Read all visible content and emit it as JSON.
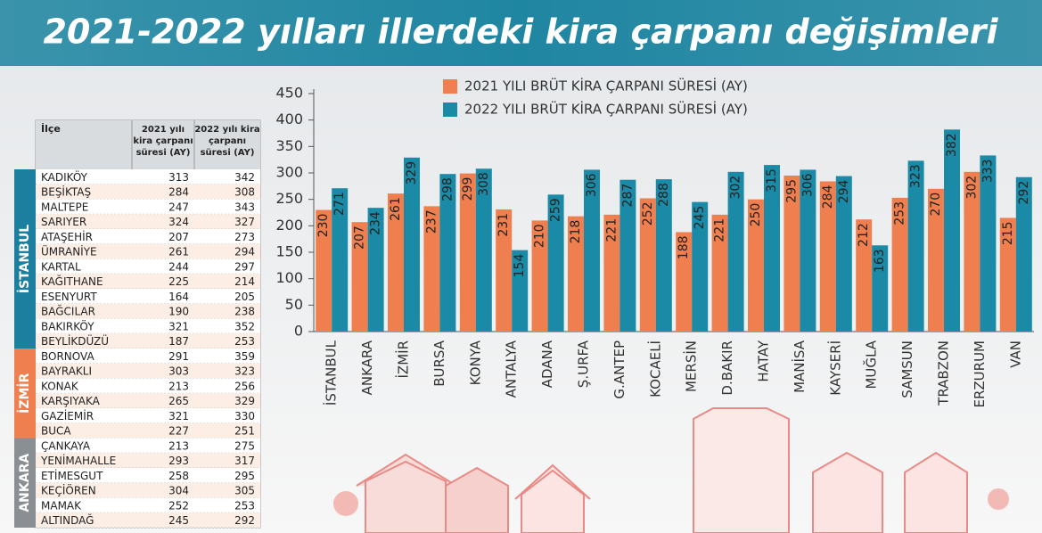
{
  "chart_data": {
    "type": "bar",
    "title": "2021-2022 yılları illerdeki kira çarpanı değişimleri",
    "categories": [
      "İSTANBUL",
      "ANKARA",
      "İZMİR",
      "BURSA",
      "KONYA",
      "ANTALYA",
      "ADANA",
      "Ş.URFA",
      "G.ANTEP",
      "KOCAELİ",
      "MERSİN",
      "D.BAKIR",
      "HATAY",
      "MANİSA",
      "KAYSERİ",
      "MUĞLA",
      "SAMSUN",
      "TRABZON",
      "ERZURUM",
      "VAN"
    ],
    "series": [
      {
        "name": "2021 YILI BRÜT KİRA  ÇARPANI SÜRESİ (AY)",
        "color": "#f07f4f",
        "values": [
          230,
          207,
          261,
          237,
          299,
          231,
          210,
          218,
          221,
          252,
          188,
          221,
          250,
          295,
          284,
          212,
          253,
          270,
          302,
          215
        ]
      },
      {
        "name": "2022 YILI BRÜT KİRA ÇARPANI SÜRESİ (AY)",
        "color": "#1b8aa6",
        "values": [
          271,
          234,
          329,
          298,
          308,
          154,
          259,
          306,
          287,
          288,
          245,
          302,
          315,
          306,
          294,
          163,
          323,
          382,
          333,
          292
        ]
      }
    ],
    "ylim": [
      0,
      450
    ],
    "yticks": [
      0,
      50,
      100,
      150,
      200,
      250,
      300,
      350,
      400,
      450
    ],
    "grid": false
  },
  "table": {
    "header": [
      "İlçe",
      "2021 yılı kira çarpanı süresi (AY)",
      "2022 yılı kira çarpanı süresi (AY)"
    ],
    "groups": [
      {
        "name": "İSTANBUL",
        "color": "#1c7fa0",
        "rows": [
          [
            "KADIKÖY",
            "313",
            "342"
          ],
          [
            "BEŞİKTAŞ",
            "284",
            "308"
          ],
          [
            "MALTEPE",
            "247",
            "343"
          ],
          [
            "SARIYER",
            "324",
            "327"
          ],
          [
            "ATAŞEHİR",
            "207",
            "273"
          ],
          [
            "ÜMRANİYE",
            "261",
            "294"
          ],
          [
            "KARTAL",
            "244",
            "297"
          ],
          [
            "KAĞITHANE",
            "225",
            "214"
          ],
          [
            "ESENYURT",
            "164",
            "205"
          ],
          [
            "BAĞCILAR",
            "190",
            "238"
          ],
          [
            "BAKIRKÖY",
            "321",
            "352"
          ],
          [
            "BEYLİKDÜZÜ",
            "187",
            "253"
          ]
        ]
      },
      {
        "name": "İZMİR",
        "color": "#f07f4f",
        "rows": [
          [
            "BORNOVA",
            "291",
            "359"
          ],
          [
            "BAYRAKLI",
            "303",
            "323"
          ],
          [
            "KONAK",
            "213",
            "256"
          ],
          [
            "KARŞIYAKA",
            "265",
            "329"
          ],
          [
            "GAZİEMİR",
            "321",
            "330"
          ],
          [
            "BUCA",
            "227",
            "251"
          ]
        ]
      },
      {
        "name": "ANKARA",
        "color": "#8a8f94",
        "rows": [
          [
            "ÇANKAYA",
            "213",
            "275"
          ],
          [
            "YENİMAHALLE",
            "293",
            "317"
          ],
          [
            "ETİMESGUT",
            "258",
            "295"
          ],
          [
            "KEÇİÖREN",
            "304",
            "305"
          ],
          [
            "MAMAK",
            "252",
            "253"
          ],
          [
            "ALTINDAĞ",
            "245",
            "292"
          ]
        ]
      }
    ]
  }
}
